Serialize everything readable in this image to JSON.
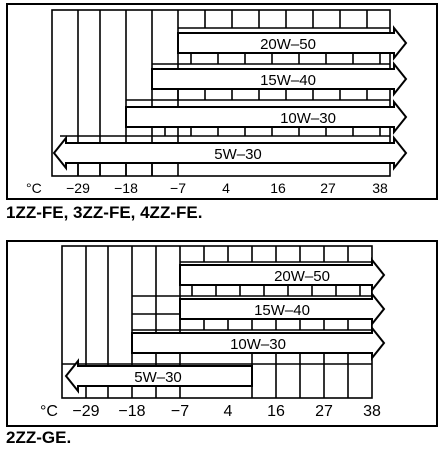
{
  "diagrams": [
    {
      "unit_label": "°C",
      "ticks": [
        "−29",
        "−18",
        "−7",
        "4",
        "16",
        "27",
        "38"
      ],
      "caption": "1ZZ-FE, 3ZZ-FE, 4ZZ-FE.",
      "grades": [
        {
          "label": "20W–50",
          "min_c": "-7",
          "max_c": "38"
        },
        {
          "label": "15W–40",
          "min_c": "-18",
          "max_c": "38"
        },
        {
          "label": "10W–30",
          "min_c": "-18",
          "max_c": "38"
        },
        {
          "label": "5W–30",
          "min_c": "-29",
          "max_c": "38"
        }
      ]
    },
    {
      "unit_label": "°C",
      "ticks": [
        "−29",
        "−18",
        "−7",
        "4",
        "16",
        "27",
        "38"
      ],
      "caption": "2ZZ-GE.",
      "grades": [
        {
          "label": "20W–50",
          "min_c": "-7",
          "max_c": "38"
        },
        {
          "label": "15W–40",
          "min_c": "-7",
          "max_c": "38"
        },
        {
          "label": "10W–30",
          "min_c": "-18",
          "max_c": "38"
        },
        {
          "label": "5W–30",
          "min_c": "-29",
          "max_c": "10"
        }
      ]
    }
  ]
}
